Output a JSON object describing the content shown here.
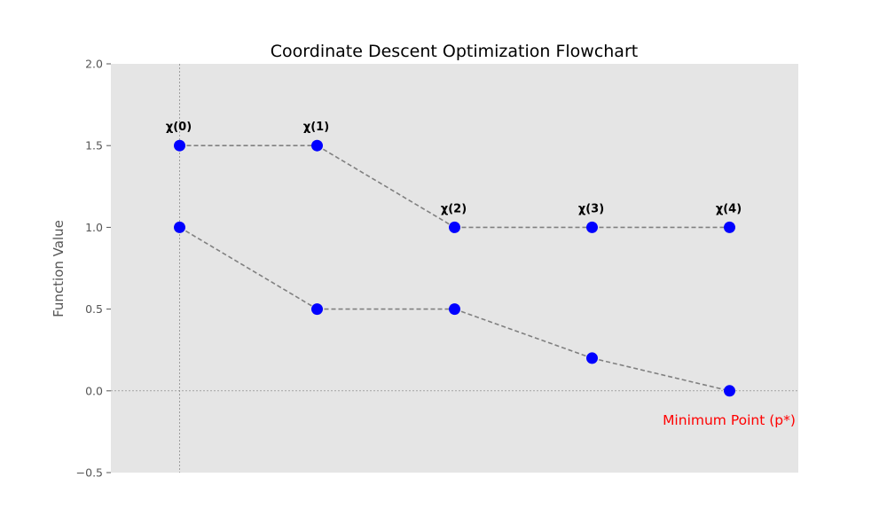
{
  "chart_data": {
    "type": "line",
    "title": "Coordinate Descent Optimization Flowchart",
    "xlabel": "",
    "ylabel": "Function Value",
    "xlim": [
      -0.5,
      4.5
    ],
    "ylim": [
      -0.5,
      2.0
    ],
    "yticks": [
      -0.5,
      0.0,
      0.5,
      1.0,
      1.5,
      2.0
    ],
    "ytick_labels": [
      "−0.5",
      "0.0",
      "0.5",
      "1.0",
      "1.5",
      "2.0"
    ],
    "grid": false,
    "reference_lines": {
      "horizontal_y": 0.0,
      "vertical_x": 0
    },
    "series": [
      {
        "x": [
          0,
          1,
          2,
          3,
          4
        ],
        "y": [
          1.5,
          1.5,
          1.0,
          1.0,
          1.0
        ]
      },
      {
        "x": [
          0,
          1,
          2,
          3,
          4
        ],
        "y": [
          1.0,
          0.5,
          0.5,
          0.2,
          0.0
        ]
      }
    ],
    "point_labels": [
      {
        "text": "χ(0)",
        "x": 0,
        "y": 1.5
      },
      {
        "text": "χ(1)",
        "x": 1,
        "y": 1.5
      },
      {
        "text": "χ(2)",
        "x": 2,
        "y": 1.0
      },
      {
        "text": "χ(3)",
        "x": 3,
        "y": 1.0
      },
      {
        "text": "χ(4)",
        "x": 4,
        "y": 1.0
      }
    ],
    "annotation": {
      "text": "Minimum Point (p*)",
      "x": 4,
      "y": 0.0
    },
    "colors": {
      "plot_background": "#e5e5e5",
      "marker": "#0000ff",
      "connector": "#808080",
      "reference_line": "#808080",
      "annotation": "#ff0000"
    }
  }
}
